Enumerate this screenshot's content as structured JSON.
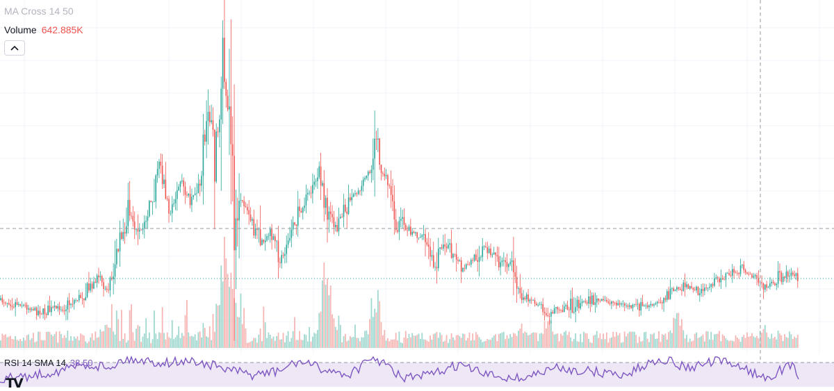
{
  "legend": {
    "ma_label": "MA Cross 14 50",
    "volume_label": "Volume",
    "volume_value": "642.885K",
    "rsi_label": "RSI 14 SMA 14",
    "rsi_value": "38.50"
  },
  "icons": {
    "collapse": "chevron-up-icon",
    "logo": "tradingview-logo-icon",
    "logo_glyph": "TV"
  },
  "colors": {
    "up": "#26a69a",
    "down": "#ef5350",
    "volume_up": "#8fd1c8",
    "volume_down": "#f5a9a7",
    "rsi_line": "#7e57c2",
    "rsi_band": "#ede7f6",
    "grid": "#f0f3fa",
    "last_price_line": "#26a69a",
    "crosshair": "#9598a1",
    "volume_value": "#ef5350"
  },
  "chart_data": {
    "type": "candlestick",
    "grid": true,
    "crosshair": true,
    "price_path": [
      [
        0,
        432
      ],
      [
        30,
        438
      ],
      [
        60,
        450
      ],
      [
        95,
        440
      ],
      [
        120,
        425
      ],
      [
        140,
        402
      ],
      [
        155,
        418
      ],
      [
        170,
        360
      ],
      [
        185,
        300
      ],
      [
        200,
        345
      ],
      [
        215,
        300
      ],
      [
        230,
        232
      ],
      [
        245,
        308
      ],
      [
        260,
        262
      ],
      [
        275,
        292
      ],
      [
        290,
        248
      ],
      [
        300,
        150
      ],
      [
        310,
        245
      ],
      [
        320,
        80
      ],
      [
        328,
        165
      ],
      [
        335,
        320
      ],
      [
        345,
        280
      ],
      [
        360,
        315
      ],
      [
        375,
        350
      ],
      [
        390,
        335
      ],
      [
        405,
        375
      ],
      [
        420,
        330
      ],
      [
        440,
        290
      ],
      [
        460,
        245
      ],
      [
        470,
        300
      ],
      [
        485,
        330
      ],
      [
        500,
        290
      ],
      [
        520,
        270
      ],
      [
        535,
        240
      ],
      [
        540,
        180
      ],
      [
        548,
        245
      ],
      [
        560,
        265
      ],
      [
        570,
        325
      ],
      [
        590,
        330
      ],
      [
        610,
        345
      ],
      [
        625,
        380
      ],
      [
        640,
        345
      ],
      [
        655,
        375
      ],
      [
        665,
        390
      ],
      [
        680,
        375
      ],
      [
        698,
        355
      ],
      [
        715,
        375
      ],
      [
        735,
        385
      ],
      [
        748,
        425
      ],
      [
        765,
        430
      ],
      [
        790,
        450
      ],
      [
        820,
        440
      ],
      [
        850,
        432
      ],
      [
        880,
        435
      ],
      [
        910,
        442
      ],
      [
        940,
        440
      ],
      [
        955,
        430
      ],
      [
        975,
        415
      ],
      [
        990,
        412
      ],
      [
        1010,
        420
      ],
      [
        1030,
        405
      ],
      [
        1050,
        395
      ],
      [
        1070,
        388
      ],
      [
        1085,
        400
      ],
      [
        1100,
        415
      ],
      [
        1120,
        400
      ],
      [
        1140,
        392
      ],
      [
        1150,
        400
      ]
    ],
    "volume_spikes": [
      [
        155,
        450
      ],
      [
        325,
        370
      ],
      [
        335,
        410
      ],
      [
        470,
        395
      ],
      [
        540,
        430
      ],
      [
        750,
        460
      ],
      [
        790,
        445
      ],
      [
        975,
        440
      ],
      [
        1100,
        462
      ],
      [
        1140,
        470
      ]
    ],
    "rsi_path": [
      [
        0,
        545
      ],
      [
        40,
        542
      ],
      [
        80,
        535
      ],
      [
        120,
        525
      ],
      [
        160,
        528
      ],
      [
        180,
        516
      ],
      [
        230,
        522
      ],
      [
        280,
        520
      ],
      [
        320,
        530
      ],
      [
        360,
        540
      ],
      [
        400,
        535
      ],
      [
        430,
        520
      ],
      [
        460,
        530
      ],
      [
        500,
        540
      ],
      [
        540,
        515
      ],
      [
        580,
        545
      ],
      [
        620,
        540
      ],
      [
        660,
        525
      ],
      [
        700,
        540
      ],
      [
        750,
        545
      ],
      [
        800,
        530
      ],
      [
        850,
        535
      ],
      [
        900,
        540
      ],
      [
        950,
        515
      ],
      [
        990,
        530
      ],
      [
        1030,
        520
      ],
      [
        1060,
        525
      ],
      [
        1100,
        545
      ],
      [
        1140,
        525
      ],
      [
        1150,
        545
      ]
    ]
  }
}
